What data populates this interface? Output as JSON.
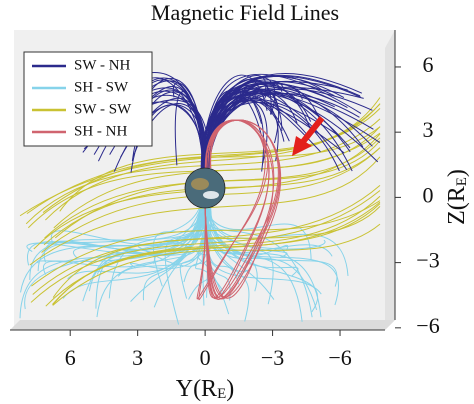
{
  "chart_data": {
    "type": "field-lines",
    "title": "Magnetic Field Lines",
    "xlabel": [
      "Y(R",
      "E",
      ")"
    ],
    "ylabel": [
      "Z(R",
      "E",
      ")"
    ],
    "xlim": [
      8.5,
      -8
    ],
    "ylim": [
      -6.1,
      7.7
    ],
    "xticks": [
      6,
      3,
      0,
      {
        "value": -3,
        "label": "−3"
      },
      {
        "value": -6,
        "label": "−6"
      }
    ],
    "yticks": [
      {
        "value": -6,
        "label": "−6"
      },
      {
        "value": -3,
        "label": "−3"
      },
      0,
      3,
      6
    ],
    "series": [
      {
        "name": "SW - NH",
        "color": "#2b2a8c"
      },
      {
        "name": "SH - SW",
        "color": "#86d3ea"
      },
      {
        "name": "SW - SW",
        "color": "#c9c233"
      },
      {
        "name": "SH - NH",
        "color": "#d0646f"
      }
    ],
    "arrow_color": "#e3201b"
  }
}
